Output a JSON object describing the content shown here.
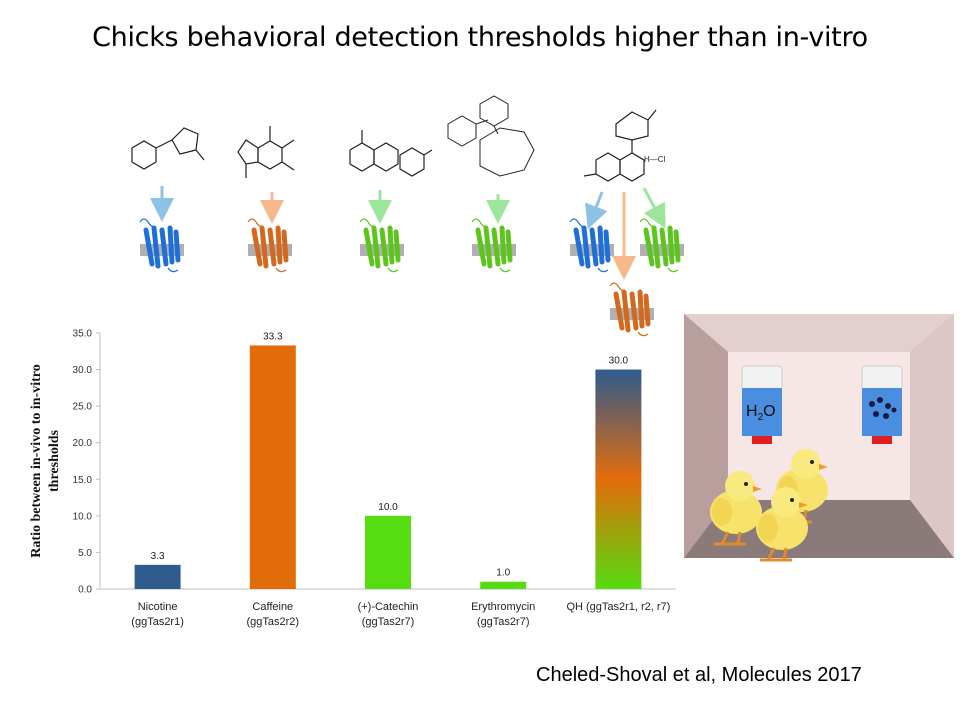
{
  "slide": {
    "title": "Chicks behavioral detection thresholds higher than in-vitro",
    "citation": "Cheled-Shoval et al, Molecules 2017"
  },
  "illustration": {
    "water_label": "H",
    "water_sub": "2",
    "water_label_end": "O",
    "molecule_annotation": "H—Cl"
  },
  "colors": {
    "blue": "#2f5b8e",
    "orange": "#e36c0a",
    "green": "#55dd11"
  },
  "chart_data": {
    "type": "bar",
    "title": "",
    "ylabel_lines": [
      "Ratio between in-vivo to in-vitro",
      "thresholds"
    ],
    "xlabel": "",
    "ylim": [
      0,
      35
    ],
    "ytick_step": 5,
    "ytick_labels": [
      "0.0",
      "5.0",
      "10.0",
      "15.0",
      "20.0",
      "25.0",
      "30.0",
      "35.0"
    ],
    "categories": [
      {
        "line1": "Nicotine",
        "line2": "(ggTas2r1)"
      },
      {
        "line1": "Caffeine",
        "line2": "(ggTas2r2)"
      },
      {
        "line1": "(+)-Catechin",
        "line2": "(ggTas2r7)"
      },
      {
        "line1": "Erythromycin",
        "line2": "(ggTas2r7)"
      },
      {
        "line1": "QH (ggTas2r1, r2, r7)",
        "line2": ""
      }
    ],
    "values": [
      3.3,
      33.3,
      10.0,
      1.0,
      30.0
    ],
    "value_labels": [
      "3.3",
      "33.3",
      "10.0",
      "1.0",
      "30.0"
    ],
    "bar_fills": [
      "blue",
      "orange",
      "green",
      "green",
      "gradient"
    ]
  }
}
